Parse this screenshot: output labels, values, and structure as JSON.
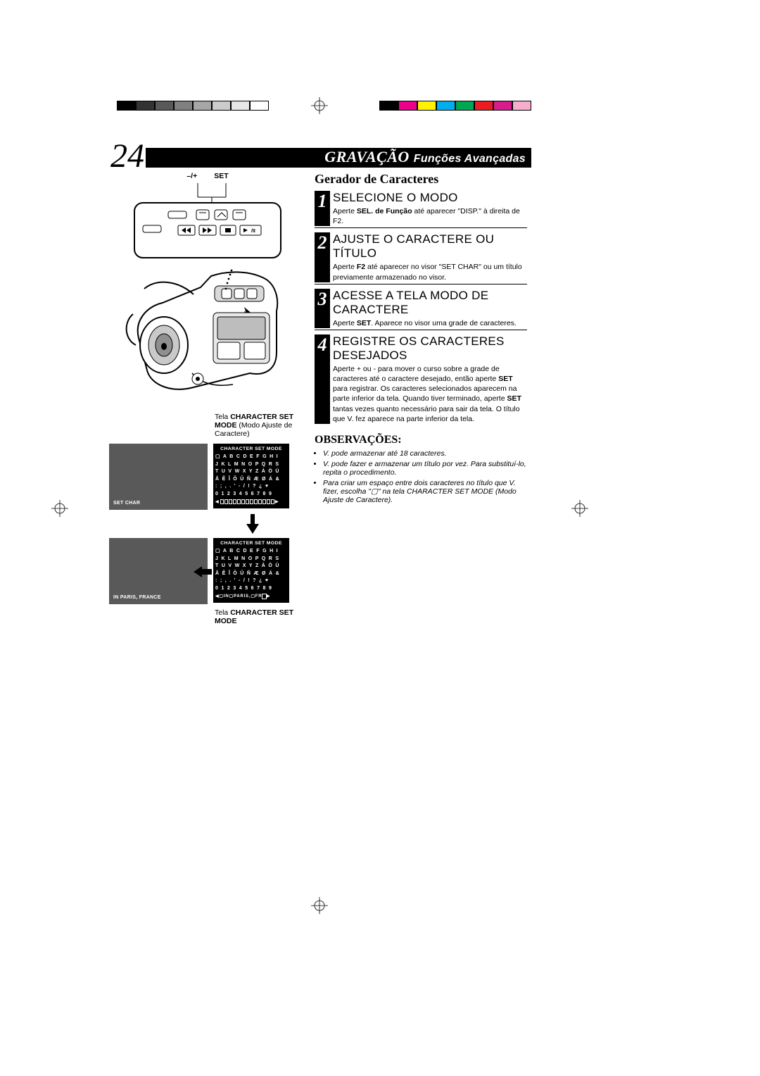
{
  "color_bars": {
    "left": [
      "#000000",
      "#333333",
      "#595959",
      "#808080",
      "#a6a6a6",
      "#cccccc",
      "#e6e6e6",
      "#ffffff"
    ],
    "right": [
      "#000000",
      "#ec008c",
      "#fff200",
      "#00aeef",
      "#00a651",
      "#ed1c24",
      "#d91b8b",
      "#f7adce"
    ]
  },
  "page_number": "24",
  "header": {
    "main": "GRAVAÇÃO",
    "sub": "Funções Avançadas"
  },
  "section_title": "Gerador de Caracteres",
  "steps": [
    {
      "num": "1",
      "heading": "SELECIONE O MODO",
      "body_html": "Aperte <b>SEL. de Função</b> até aparecer \"DISP.\" à direita de F2."
    },
    {
      "num": "2",
      "heading": "AJUSTE O CARACTERE OU TÍTULO",
      "body_html": "Aperte <b>F2</b> até aparecer no visor \"SET CHAR\" ou um título previamente armazenado no visor."
    },
    {
      "num": "3",
      "heading": "ACESSE A TELA  MODO DE CARACTERE",
      "body_html": "Aperte <b>SET</b>. Aparece no visor uma grade de caracteres."
    },
    {
      "num": "4",
      "heading": "REGISTRE OS CARACTERES DESEJADOS",
      "body_html": "Aperte + ou - para mover o curso sobre a grade de caracteres até o caractere desejado, então aperte <b>SET</b> para registrar. Os caracteres selecionados aparecem na parte inferior da tela. Quando tiver terminado, aperte <b>SET</b> tantas vezes quanto necessário para sair da tela. O título que V. fez aparece na parte inferior da tela."
    }
  ],
  "observacoes": {
    "title": "OBSERVAÇÕES:",
    "items": [
      "V. pode armazenar até 18 caracteres.",
      "V. pode fazer e armazenar um título por vez. Para substituí-lo, repita o procedimento.",
      "Para criar um espaço entre dois caracteres no título que V. fizer, escolha \"▢\" na tela CHARACTER SET MODE (Modo Ajuste de Caractere)."
    ]
  },
  "left_labels": {
    "btn_minusplus": "–/+",
    "btn_set": "SET",
    "caption1_a": "Tela ",
    "caption1_b": "CHARACTER SET MODE",
    "caption1_c": " (Modo Ajuste de Caractere)",
    "caption2_a": "Tela ",
    "caption2_b": "CHARACTER SET MODE"
  },
  "screens": {
    "lcd1_label": "SET CHAR",
    "lcd2_label": "IN PARIS, FRANCE",
    "grid_title": "CHARACTER SET MODE",
    "grid_rows": [
      "▢ A B C D E F G H I",
      "J K L M N O P Q R S",
      "T U V W X Y Z À Ö Ü",
      "Å Ê Î Ô Û Ñ Æ Ø Á &",
      ": ; , . ' - / ! ? ¿ ♥",
      "0 1 2 3 4 5 6 7 8 9"
    ],
    "grid2_footer": "▢IN▢PARIS,▢FR"
  }
}
